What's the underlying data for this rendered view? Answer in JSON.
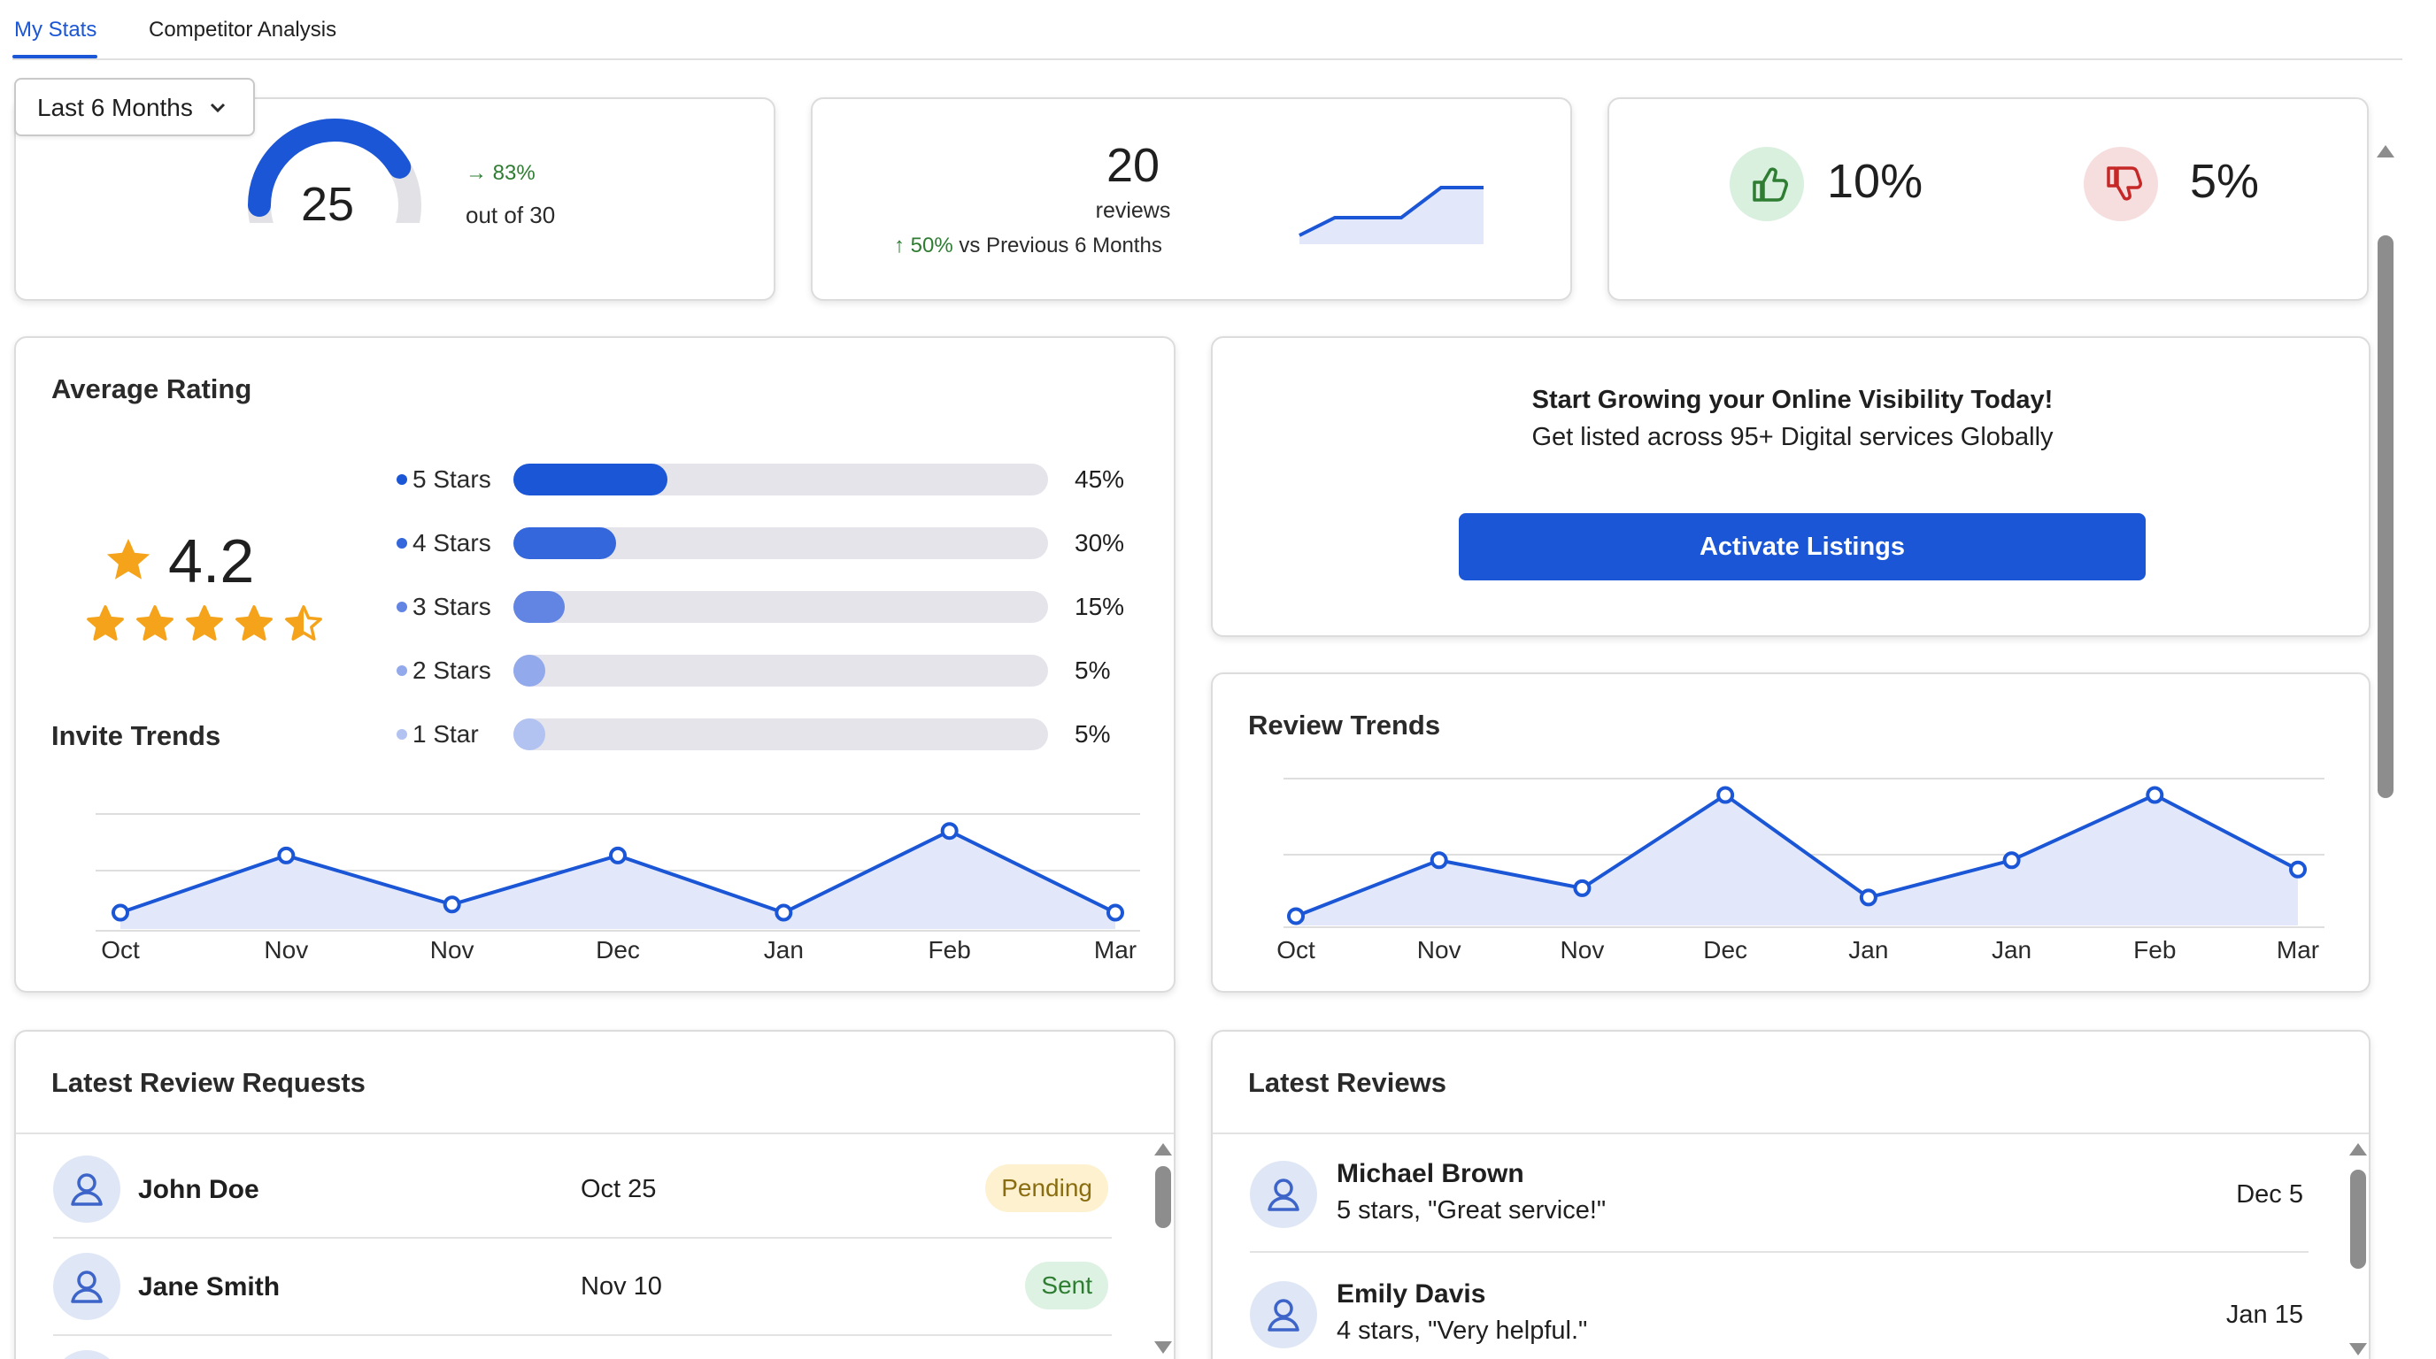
{
  "tabs": [
    {
      "label": "My Stats",
      "active": true
    },
    {
      "label": "Competitor Analysis",
      "active": false
    }
  ],
  "date_filter": {
    "selected": "Last 6 Months",
    "icon": "chevron-down-icon"
  },
  "score_card": {
    "value": "25",
    "gauge_fraction": 0.83,
    "change": "83%",
    "change_icon": "arrow-right-icon",
    "subtext": "out of 30"
  },
  "reviews_card": {
    "count": "20",
    "label": "reviews",
    "change_pct": "50%",
    "change_text": "vs Previous 6 Months",
    "change_icon": "arrow-up-icon"
  },
  "sentiment_card": {
    "positive": "10%",
    "negative": "5%",
    "positive_icon": "thumbs-up-icon",
    "negative_icon": "thumbs-down-icon"
  },
  "average_rating": {
    "title": "Average Rating",
    "value": "4.2",
    "stars_value": 4.5,
    "distribution": [
      {
        "label": "5 Stars",
        "value": 45,
        "pct": "45%"
      },
      {
        "label": "4 Stars",
        "value": 30,
        "pct": "30%"
      },
      {
        "label": "3 Stars",
        "value": 15,
        "pct": "15%"
      },
      {
        "label": "2 Stars",
        "value": 5,
        "pct": "5%"
      },
      {
        "label": "1 Star",
        "value": 5,
        "pct": "5%"
      }
    ]
  },
  "promo": {
    "headline": "Start Growing your Online Visibility Today!",
    "subline": "Get listed across 95+ Digital services Globally",
    "button": "Activate Listings"
  },
  "invite_trends": {
    "title": "Invite Trends",
    "months": [
      "Oct",
      "Nov",
      "Nov",
      "Dec",
      "Jan",
      "Feb",
      "Mar"
    ],
    "values": [
      2,
      9,
      3,
      9,
      2,
      12,
      2
    ]
  },
  "review_trends": {
    "title": "Review Trends",
    "months": [
      "Oct",
      "Nov",
      "Nov",
      "Dec",
      "Jan",
      "Jan",
      "Feb",
      "Mar"
    ],
    "values": [
      1,
      7,
      4,
      14,
      3,
      7,
      14,
      6
    ]
  },
  "latest_requests": {
    "title": "Latest Review Requests",
    "rows": [
      {
        "name": "John Doe",
        "date": "Oct 25",
        "status": "Pending"
      },
      {
        "name": "Jane Smith",
        "date": "Nov 10",
        "status": "Sent"
      }
    ]
  },
  "latest_reviews": {
    "title": "Latest Reviews",
    "rows": [
      {
        "name": "Michael Brown",
        "text": "5 stars, \"Great service!\"",
        "date": "Dec 5"
      },
      {
        "name": "Emily Davis",
        "text": "4 stars, \"Very helpful.\"",
        "date": "Jan 15"
      }
    ]
  },
  "colors": {
    "primary": "#1a56d6",
    "positive": "#2e7d32",
    "pending_bg": "#fdf1cf",
    "sent_bg": "#ddf2e3",
    "star": "#f4a31b"
  }
}
